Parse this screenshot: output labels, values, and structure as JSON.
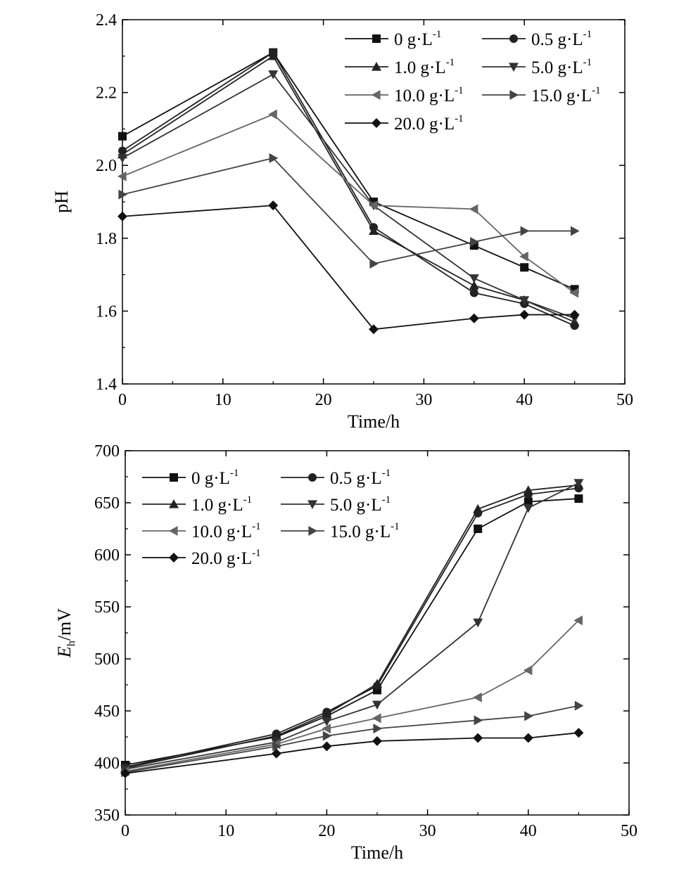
{
  "chart_data": [
    {
      "type": "line",
      "xlabel": "Time/h",
      "ylabel": "pH",
      "xlim": [
        0,
        50
      ],
      "ylim": [
        1.4,
        2.4
      ],
      "xticks": [
        "0",
        "10",
        "20",
        "30",
        "40",
        "50"
      ],
      "yticks": [
        "1.4",
        "1.6",
        "1.8",
        "2.0",
        "2.2",
        "2.4"
      ],
      "legend": "top-right",
      "grid": false,
      "series": [
        {
          "name": "0 g·L",
          "sup": "-1",
          "marker": "square",
          "color": "#111111",
          "x": [
            0,
            15,
            25,
            35,
            40,
            45
          ],
          "y": [
            2.08,
            2.31,
            1.9,
            1.78,
            1.72,
            1.66
          ]
        },
        {
          "name": "0.5 g·L",
          "sup": "-1",
          "marker": "circle",
          "color": "#222222",
          "x": [
            0,
            15,
            25,
            35,
            40,
            45
          ],
          "y": [
            2.04,
            2.31,
            1.83,
            1.65,
            1.62,
            1.56
          ]
        },
        {
          "name": "1.0 g·L",
          "sup": "-1",
          "marker": "triangle-up",
          "color": "#222222",
          "x": [
            0,
            15,
            25,
            35,
            40,
            45
          ],
          "y": [
            2.03,
            2.3,
            1.82,
            1.67,
            1.63,
            1.57
          ]
        },
        {
          "name": "5.0 g·L",
          "sup": "-1",
          "marker": "triangle-down",
          "color": "#333333",
          "x": [
            0,
            15,
            25,
            35,
            40,
            45
          ],
          "y": [
            2.02,
            2.25,
            1.89,
            1.69,
            1.63,
            1.58
          ]
        },
        {
          "name": "10.0 g·L",
          "sup": "-1",
          "marker": "triangle-left",
          "color": "#666666",
          "x": [
            0,
            15,
            25,
            35,
            40,
            45
          ],
          "y": [
            1.97,
            2.14,
            1.89,
            1.88,
            1.75,
            1.65
          ]
        },
        {
          "name": "15.0 g·L",
          "sup": "-1",
          "marker": "triangle-right",
          "color": "#444444",
          "x": [
            0,
            15,
            25,
            35,
            40,
            45
          ],
          "y": [
            1.92,
            2.02,
            1.73,
            1.79,
            1.82,
            1.82
          ]
        },
        {
          "name": "20.0 g·L",
          "sup": "-1",
          "marker": "diamond",
          "color": "#111111",
          "x": [
            0,
            15,
            25,
            35,
            40,
            45
          ],
          "y": [
            1.86,
            1.89,
            1.55,
            1.58,
            1.59,
            1.59
          ]
        }
      ]
    },
    {
      "type": "line",
      "xlabel": "Time/h",
      "ylabel_main": "E",
      "ylabel_sub": "h",
      "ylabel_rest": "/mV",
      "xlim": [
        0,
        50
      ],
      "ylim": [
        350,
        700
      ],
      "xticks": [
        "0",
        "10",
        "20",
        "30",
        "40",
        "50"
      ],
      "yticks": [
        "350",
        "400",
        "450",
        "500",
        "550",
        "600",
        "650",
        "700"
      ],
      "legend": "top-left",
      "grid": false,
      "series": [
        {
          "name": "0 g·L",
          "sup": "-1",
          "marker": "square",
          "color": "#111111",
          "x": [
            0,
            15,
            20,
            25,
            35,
            40,
            45
          ],
          "y": [
            398,
            425,
            445,
            470,
            625,
            651,
            654
          ]
        },
        {
          "name": "0.5 g·L",
          "sup": "-1",
          "marker": "circle",
          "color": "#222222",
          "x": [
            0,
            15,
            20,
            25,
            35,
            40,
            45
          ],
          "y": [
            396,
            428,
            449,
            474,
            640,
            658,
            664
          ]
        },
        {
          "name": "1.0 g·L",
          "sup": "-1",
          "marker": "triangle-up",
          "color": "#222222",
          "x": [
            0,
            15,
            20,
            25,
            35,
            40,
            45
          ],
          "y": [
            395,
            426,
            447,
            476,
            644,
            662,
            667
          ]
        },
        {
          "name": "5.0 g·L",
          "sup": "-1",
          "marker": "triangle-down",
          "color": "#333333",
          "x": [
            0,
            15,
            20,
            25,
            35,
            40,
            45
          ],
          "y": [
            394,
            420,
            440,
            456,
            535,
            645,
            669
          ]
        },
        {
          "name": "10.0 g·L",
          "sup": "-1",
          "marker": "triangle-left",
          "color": "#666666",
          "x": [
            0,
            15,
            20,
            25,
            35,
            40,
            45
          ],
          "y": [
            392,
            418,
            433,
            443,
            463,
            489,
            537
          ]
        },
        {
          "name": "15.0 g·L",
          "sup": "-1",
          "marker": "triangle-right",
          "color": "#444444",
          "x": [
            0,
            15,
            20,
            25,
            35,
            40,
            45
          ],
          "y": [
            391,
            416,
            426,
            433,
            441,
            445,
            455
          ]
        },
        {
          "name": "20.0 g·L",
          "sup": "-1",
          "marker": "diamond",
          "color": "#111111",
          "x": [
            0,
            15,
            20,
            25,
            35,
            40,
            45
          ],
          "y": [
            390,
            409,
            416,
            421,
            424,
            424,
            429
          ]
        }
      ]
    }
  ]
}
